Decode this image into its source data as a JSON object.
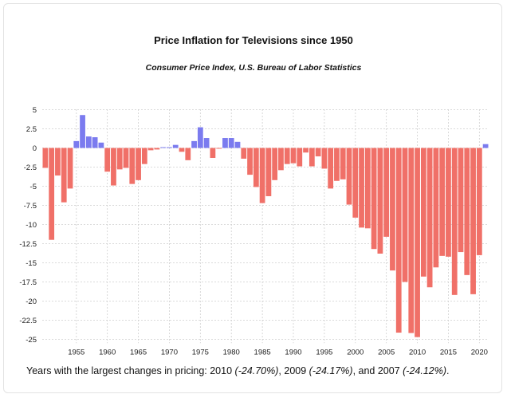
{
  "chart_data": {
    "type": "bar",
    "title": "Price Inflation for Televisions since 1950",
    "subtitle": "Consumer Price Index, U.S. Bureau of Labor Statistics",
    "xlabel": "",
    "ylabel": "",
    "ylim": [
      -25.5,
      5
    ],
    "yticks": [
      "5",
      "2.5",
      "0",
      "-2.5",
      "-5",
      "-7.5",
      "-10",
      "-12.5",
      "-15",
      "-17.5",
      "-20",
      "-22.5",
      "-25"
    ],
    "xticks": [
      "1955",
      "1960",
      "1965",
      "1970",
      "1975",
      "1980",
      "1985",
      "1990",
      "1995",
      "2000",
      "2005",
      "2010",
      "2015",
      "2020"
    ],
    "grid": true,
    "colors": {
      "positive": "#7b7bef",
      "negative": "#f07068"
    },
    "years": [
      1950,
      1951,
      1952,
      1953,
      1954,
      1955,
      1956,
      1957,
      1958,
      1959,
      1960,
      1961,
      1962,
      1963,
      1964,
      1965,
      1966,
      1967,
      1968,
      1969,
      1970,
      1971,
      1972,
      1973,
      1974,
      1975,
      1976,
      1977,
      1978,
      1979,
      1980,
      1981,
      1982,
      1983,
      1984,
      1985,
      1986,
      1987,
      1988,
      1989,
      1990,
      1991,
      1992,
      1993,
      1994,
      1995,
      1996,
      1997,
      1998,
      1999,
      2000,
      2001,
      2002,
      2003,
      2004,
      2005,
      2006,
      2007,
      2008,
      2009,
      2010,
      2011,
      2012,
      2013,
      2014,
      2015,
      2016,
      2017,
      2018,
      2019,
      2020,
      2021
    ],
    "values": [
      -2.6,
      -12.0,
      -3.6,
      -7.1,
      -5.3,
      0.9,
      4.3,
      1.5,
      1.4,
      0.7,
      -3.1,
      -4.9,
      -2.8,
      -2.6,
      -4.7,
      -4.2,
      -2.1,
      -0.3,
      -0.2,
      0.1,
      0.1,
      0.4,
      -0.5,
      -1.6,
      0.9,
      2.7,
      1.3,
      -1.3,
      -0.1,
      1.3,
      1.3,
      0.8,
      -1.4,
      -3.5,
      -5.1,
      -7.2,
      -6.3,
      -4.2,
      -2.9,
      -2.1,
      -2.0,
      -2.4,
      -0.6,
      -2.4,
      -1.1,
      -2.7,
      -5.3,
      -4.3,
      -4.1,
      -7.4,
      -9.1,
      -10.4,
      -10.5,
      -13.2,
      -13.8,
      -11.6,
      -16.0,
      -24.12,
      -17.5,
      -24.17,
      -24.7,
      -16.8,
      -18.2,
      -15.6,
      -14.1,
      -14.2,
      -19.2,
      -13.6,
      -16.6,
      -19.1,
      -14.0,
      0.5
    ]
  },
  "footer": {
    "prefix": "Years with the largest changes in pricing: ",
    "y1": "2010",
    "v1": "(-24.70%)",
    "sep1": ", ",
    "y2": "2009",
    "v2": "(-24.17%)",
    "sep2": ", and ",
    "y3": "2007",
    "v3": "(-24.12%)",
    "end": "."
  }
}
